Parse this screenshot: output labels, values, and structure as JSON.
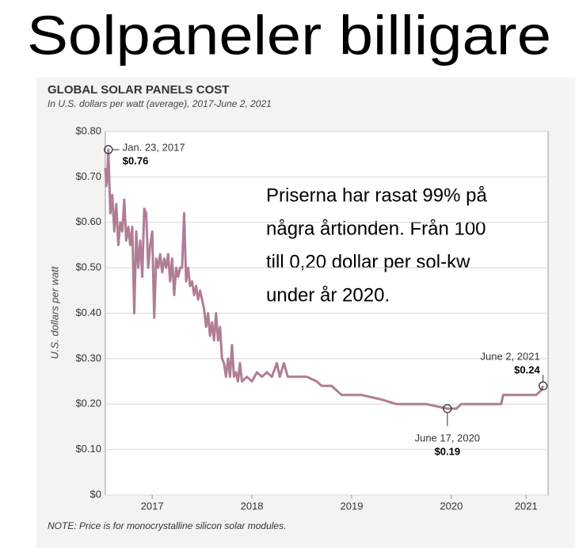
{
  "heading": "Solpaneler billigare",
  "overlay_text": [
    "Priserna har rasat 99% på",
    "några årtionden. Från 100",
    "till 0,20 dollar per sol-kw",
    "under år 2020."
  ],
  "chart_data": {
    "type": "line",
    "title": "GLOBAL SOLAR PANELS COST",
    "subtitle": "In U.S. dollars per watt (average), 2017-June 2, 2021",
    "y_label": "U.S. dollars per watt",
    "note": "NOTE: Price is for monocrystalline silicon solar modules.",
    "color": "#b07d95",
    "grid": true,
    "xlim": [
      2017.03,
      2021.47
    ],
    "ylim": [
      0,
      0.8
    ],
    "xticks": [
      {
        "value": 2017.5,
        "label": "2017"
      },
      {
        "value": 2018.5,
        "label": "2018"
      },
      {
        "value": 2019.5,
        "label": "2019"
      },
      {
        "value": 2020.5,
        "label": "2020"
      },
      {
        "value": 2021.25,
        "label": "2021"
      }
    ],
    "yticks": [
      {
        "value": 0,
        "label": "$0"
      },
      {
        "value": 0.1,
        "label": "$0.10"
      },
      {
        "value": 0.2,
        "label": "$0.20"
      },
      {
        "value": 0.3,
        "label": "$0.30"
      },
      {
        "value": 0.4,
        "label": "$0.40"
      },
      {
        "value": 0.5,
        "label": "$0.50"
      },
      {
        "value": 0.6,
        "label": "$0.60"
      },
      {
        "value": 0.7,
        "label": "$0.70"
      },
      {
        "value": 0.8,
        "label": "$0.80"
      }
    ],
    "x": [
      2017.03,
      2017.04,
      2017.05,
      2017.06,
      2017.08,
      2017.1,
      2017.12,
      2017.14,
      2017.16,
      2017.18,
      2017.2,
      2017.22,
      2017.24,
      2017.26,
      2017.28,
      2017.3,
      2017.32,
      2017.34,
      2017.36,
      2017.38,
      2017.4,
      2017.42,
      2017.44,
      2017.46,
      2017.48,
      2017.5,
      2017.52,
      2017.54,
      2017.56,
      2017.58,
      2017.6,
      2017.62,
      2017.64,
      2017.66,
      2017.68,
      2017.7,
      2017.72,
      2017.74,
      2017.76,
      2017.78,
      2017.8,
      2017.82,
      2017.84,
      2017.86,
      2017.88,
      2017.9,
      2017.92,
      2017.94,
      2017.96,
      2017.98,
      2018.0,
      2018.02,
      2018.04,
      2018.06,
      2018.08,
      2018.1,
      2018.12,
      2018.14,
      2018.16,
      2018.18,
      2018.2,
      2018.22,
      2018.24,
      2018.26,
      2018.28,
      2018.3,
      2018.32,
      2018.34,
      2018.36,
      2018.38,
      2018.4,
      2018.45,
      2018.5,
      2018.55,
      2018.6,
      2018.65,
      2018.7,
      2018.75,
      2018.78,
      2018.82,
      2018.86,
      2018.95,
      2019.05,
      2019.15,
      2019.2,
      2019.3,
      2019.4,
      2019.6,
      2019.8,
      2019.95,
      2020.1,
      2020.25,
      2020.46,
      2020.55,
      2020.6,
      2020.8,
      2021.0,
      2021.02,
      2021.2,
      2021.35,
      2021.4,
      2021.42
    ],
    "values": [
      0.72,
      0.68,
      0.7,
      0.76,
      0.62,
      0.66,
      0.58,
      0.64,
      0.55,
      0.6,
      0.58,
      0.65,
      0.56,
      0.59,
      0.55,
      0.59,
      0.4,
      0.58,
      0.5,
      0.56,
      0.48,
      0.63,
      0.62,
      0.5,
      0.55,
      0.58,
      0.39,
      0.52,
      0.5,
      0.53,
      0.49,
      0.52,
      0.5,
      0.53,
      0.47,
      0.52,
      0.44,
      0.5,
      0.48,
      0.5,
      0.5,
      0.62,
      0.47,
      0.5,
      0.46,
      0.47,
      0.44,
      0.46,
      0.43,
      0.45,
      0.43,
      0.41,
      0.37,
      0.4,
      0.35,
      0.38,
      0.34,
      0.4,
      0.34,
      0.37,
      0.3,
      0.29,
      0.26,
      0.3,
      0.26,
      0.33,
      0.26,
      0.27,
      0.25,
      0.29,
      0.25,
      0.26,
      0.25,
      0.27,
      0.26,
      0.27,
      0.26,
      0.29,
      0.26,
      0.29,
      0.26,
      0.26,
      0.26,
      0.25,
      0.24,
      0.24,
      0.22,
      0.22,
      0.21,
      0.2,
      0.2,
      0.2,
      0.19,
      0.19,
      0.2,
      0.2,
      0.2,
      0.22,
      0.22,
      0.22,
      0.23,
      0.24
    ],
    "annotations": [
      {
        "label": "Jan. 23, 2017",
        "value_label": "$0.76",
        "x": 2017.06,
        "y": 0.76
      },
      {
        "label": "June 17, 2020",
        "value_label": "$0.19",
        "x": 2020.46,
        "y": 0.19
      },
      {
        "label": "June 2, 2021",
        "value_label": "$0.24",
        "x": 2021.42,
        "y": 0.24
      }
    ]
  }
}
